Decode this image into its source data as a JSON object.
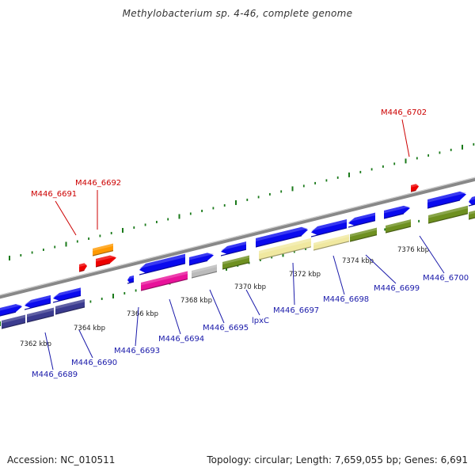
{
  "title": "Methylobacterium sp. 4-46, complete genome",
  "footer": {
    "accession": "Accession: NC_010511",
    "summary": "Topology: circular; Length: 7,659,055 bp; Genes: 6,691"
  },
  "colors": {
    "backbone": "#888888",
    "tick": "#1a7a1a",
    "label_red": "#cc0000",
    "label_blue": "#1a1aaa",
    "cds_blue": "#0a0aee",
    "rna_red": "#ee0000",
    "orange": "#ff9900",
    "navy": "#3b3b8f",
    "pink": "#e8129a",
    "grey": "#bbbbbb",
    "olive": "#6e9020",
    "khaki": "#f0e8a0"
  },
  "scale_labels": [
    {
      "kbp": 7362,
      "text": "7362 kbp"
    },
    {
      "kbp": 7364,
      "text": "7364 kbp"
    },
    {
      "kbp": 7366,
      "text": "7366 kbp"
    },
    {
      "kbp": 7368,
      "text": "7368 kbp"
    },
    {
      "kbp": 7370,
      "text": "7370 kbp"
    },
    {
      "kbp": 7372,
      "text": "7372 kbp"
    },
    {
      "kbp": 7374,
      "text": "7374 kbp"
    },
    {
      "kbp": 7376,
      "text": "7376 kbp"
    }
  ],
  "gene_labels": [
    {
      "text": "M446_6689",
      "color": "blue"
    },
    {
      "text": "M446_6690",
      "color": "blue"
    },
    {
      "text": "M446_6691",
      "color": "red"
    },
    {
      "text": "M446_6692",
      "color": "red"
    },
    {
      "text": "M446_6693",
      "color": "blue"
    },
    {
      "text": "M446_6694",
      "color": "blue"
    },
    {
      "text": "M446_6695",
      "color": "blue"
    },
    {
      "text": "lpxC",
      "color": "blue"
    },
    {
      "text": "M446_6697",
      "color": "blue"
    },
    {
      "text": "M446_6698",
      "color": "blue"
    },
    {
      "text": "M446_6699",
      "color": "blue"
    },
    {
      "text": "M446_6700",
      "color": "blue"
    },
    {
      "text": "M446_6702",
      "color": "red"
    }
  ]
}
